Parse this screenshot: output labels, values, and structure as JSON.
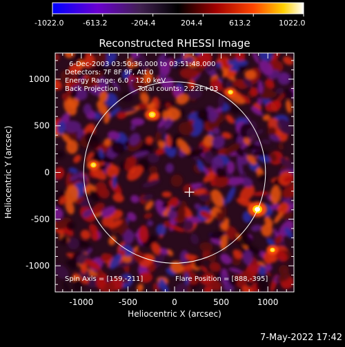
{
  "chart_data": {
    "type": "heatmap",
    "title": "Reconstructed RHESSI Image",
    "xlabel": "Heliocentric X (arcsec)",
    "ylabel": "Heliocentric Y (arcsec)",
    "xlim": [
      -1280,
      1280
    ],
    "ylim": [
      -1280,
      1280
    ],
    "x_ticks": [
      -1000,
      -500,
      0,
      500,
      1000
    ],
    "y_ticks": [
      -1000,
      -500,
      0,
      500,
      1000
    ],
    "colorbar": {
      "range": [
        -1022.0,
        1022.0
      ],
      "tick_labels": [
        "-1022.0",
        "-613.2",
        "-204.4",
        "204.4",
        "613.2",
        "1022.0"
      ],
      "colors": [
        "#0000ff",
        "#7a00d8",
        "#3a1030",
        "#000000",
        "#a00000",
        "#ff4000",
        "#ffd000",
        "#ffffff"
      ]
    },
    "annotations": {
      "time": "6-Dec-2003 03:50:36.000 to 03:51:48.000",
      "detectors": "Detectors: 7F 8F 9F, Att 0",
      "energy": "Energy Range: 6.0 - 12.0 keV",
      "method": "Back Projection",
      "counts": "Total counts: 2.22E+03",
      "spin_axis": "Spin Axis = [159,-211]",
      "flare_position": "Flare Position = [888,-395]"
    },
    "solar_limb_radius": 975,
    "sun_center_marker": [
      159,
      -211
    ],
    "bright_sources": [
      {
        "x": 888,
        "y": -395,
        "value": 1022
      },
      {
        "x": -240,
        "y": 620,
        "value": 700
      },
      {
        "x": -870,
        "y": 80,
        "value": 560
      },
      {
        "x": 600,
        "y": 860,
        "value": 500
      },
      {
        "x": 1050,
        "y": -830,
        "value": 470
      }
    ]
  },
  "footer": {
    "date": "7-May-2022 17:42"
  }
}
